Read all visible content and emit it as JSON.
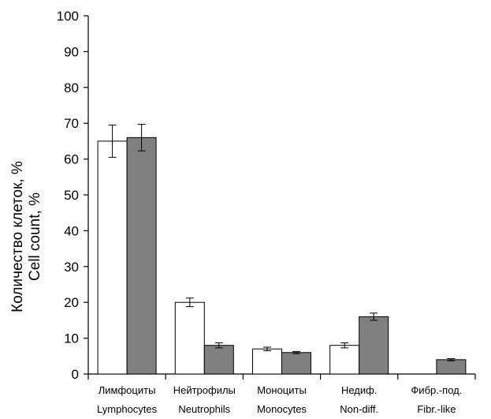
{
  "chart_data": {
    "type": "bar",
    "title": "",
    "ylabel_lines": [
      "Количество клеток, %",
      "Cell count, %"
    ],
    "ylim": [
      0,
      100
    ],
    "yticks": [
      0,
      10,
      20,
      30,
      40,
      50,
      60,
      70,
      80,
      90,
      100
    ],
    "grid": false,
    "legend": "none",
    "categories": [
      {
        "line1": "Лимфоциты",
        "line2": "Lymphocytes"
      },
      {
        "line1": "Нейтрофилы",
        "line2": "Neutrophils"
      },
      {
        "line1": "Моноциты",
        "line2": "Monocytes"
      },
      {
        "line1": "Недиф.",
        "line2": "Non-diff."
      },
      {
        "line1": "Фибр.-под.",
        "line2": "Fibr.-like"
      }
    ],
    "series": [
      {
        "values": [
          65,
          20,
          7,
          8,
          0
        ],
        "errors": [
          4.5,
          1.2,
          0.5,
          0.7,
          0
        ],
        "color": "#ffffff"
      },
      {
        "values": [
          66,
          8,
          6,
          16,
          4
        ],
        "errors": [
          3.7,
          0.7,
          0.3,
          1.0,
          0.3
        ],
        "color": "#808080"
      }
    ]
  }
}
